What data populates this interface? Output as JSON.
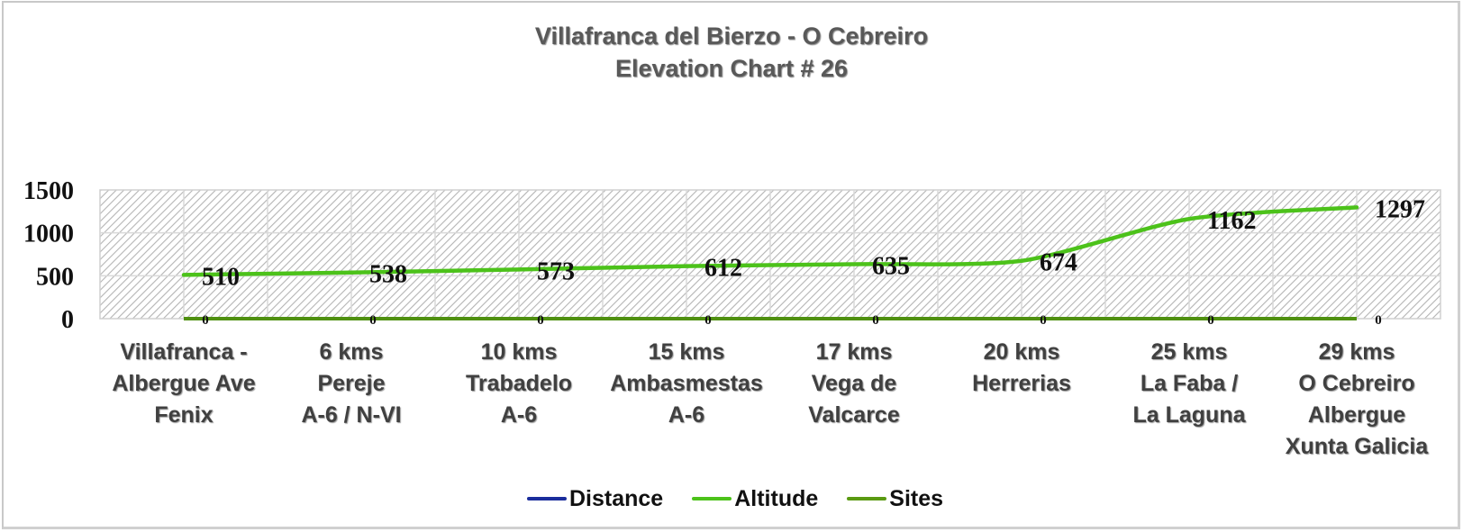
{
  "title": {
    "line1": "Villafranca del Bierzo - O Cebreiro",
    "line2": "Elevation Chart # 26"
  },
  "y_axis": {
    "ticks": [
      "0",
      "500",
      "1000",
      "1500"
    ]
  },
  "x_axis": {
    "categories": [
      [
        "Villafranca -",
        "Albergue Ave",
        "Fenix"
      ],
      [
        "6 kms",
        "Pereje",
        "A-6 / N-VI"
      ],
      [
        "10 kms",
        "Trabadelo",
        "A-6"
      ],
      [
        "15 kms",
        "Ambasmestas",
        "A-6"
      ],
      [
        "17 kms",
        "Vega de",
        "Valcarce"
      ],
      [
        "20 kms",
        "Herrerias"
      ],
      [
        "25 kms",
        "La Faba /",
        "La Laguna"
      ],
      [
        "29 kms",
        "O Cebreiro",
        "Albergue",
        "Xunta Galicia"
      ]
    ]
  },
  "legend": {
    "items": [
      {
        "label": "Distance",
        "color": "#1a2d9c"
      },
      {
        "label": "Altitude",
        "color": "#4cc21a"
      },
      {
        "label": "Sites",
        "color": "#5a9a12"
      }
    ]
  },
  "colors": {
    "altitude": "#4cc21a",
    "sites": "#4f9010",
    "distance": "#1a2d9c",
    "grid": "#d9d9d9",
    "hatch": "#b4b4b4"
  },
  "chart_data": {
    "type": "line",
    "title": "Villafranca del Bierzo - O Cebreiro Elevation Chart # 26",
    "categories": [
      "Villafranca - Albergue Ave Fenix",
      "6 kms Pereje A-6 / N-VI",
      "10 kms Trabadelo A-6",
      "15 kms Ambasmestas A-6",
      "17 kms Vega de Valcarce",
      "20 kms Herrerias",
      "25 kms La Faba / La Laguna",
      "29 kms O Cebreiro Albergue Xunta Galicia"
    ],
    "series": [
      {
        "name": "Distance",
        "values": [],
        "color": "#1a2d9c"
      },
      {
        "name": "Altitude",
        "values": [
          510,
          538,
          573,
          612,
          635,
          674,
          1162,
          1297
        ],
        "color": "#4cc21a"
      },
      {
        "name": "Sites",
        "values": [
          0,
          0,
          0,
          0,
          0,
          0,
          0,
          0
        ],
        "color": "#5a9a12"
      }
    ],
    "data_labels": {
      "Altitude": [
        "510",
        "538",
        "573",
        "612",
        "635",
        "674",
        "1162",
        "1297"
      ],
      "Sites": [
        "0",
        "0",
        "0",
        "0",
        "0",
        "0",
        "0",
        "0"
      ]
    },
    "xlabel": "",
    "ylabel": "",
    "ylim": [
      0,
      1500
    ],
    "yticks": [
      0,
      500,
      1000,
      1500
    ],
    "grid": true,
    "legend_position": "bottom"
  }
}
